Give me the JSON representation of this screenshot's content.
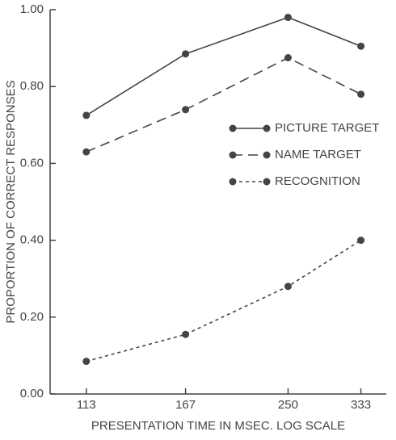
{
  "chart_data": {
    "type": "line",
    "x_label": "PRESENTATION TIME IN MSEC.  LOG SCALE",
    "y_label": "PROPORTION OF CORRECT RESPONSES",
    "x": [
      113,
      167,
      250,
      333
    ],
    "xlim": [
      98,
      368
    ],
    "xticks": [
      113,
      167,
      250,
      333
    ],
    "xscale": "log",
    "ylim": [
      0,
      1
    ],
    "yticks": [
      {
        "value": 0,
        "label": "0.00"
      },
      {
        "value": 0.2,
        "label": "0.20"
      },
      {
        "value": 0.4,
        "label": "0.40"
      },
      {
        "value": 0.6,
        "label": "0.60"
      },
      {
        "value": 0.8,
        "label": "0.80"
      },
      {
        "value": 1,
        "label": "1.00"
      }
    ],
    "grid": false,
    "legend": "right",
    "series": [
      {
        "name": "PICTURE TARGET",
        "color": "#444444",
        "style": "solid",
        "values": [
          0.725,
          0.885,
          0.98,
          0.905
        ]
      },
      {
        "name": "NAME TARGET",
        "color": "#444444",
        "style": "dashed",
        "values": [
          0.63,
          0.74,
          0.875,
          0.78
        ]
      },
      {
        "name": "RECOGNITION",
        "color": "#444444",
        "style": "dotted",
        "values": [
          0.085,
          0.155,
          0.28,
          0.4
        ]
      }
    ]
  }
}
